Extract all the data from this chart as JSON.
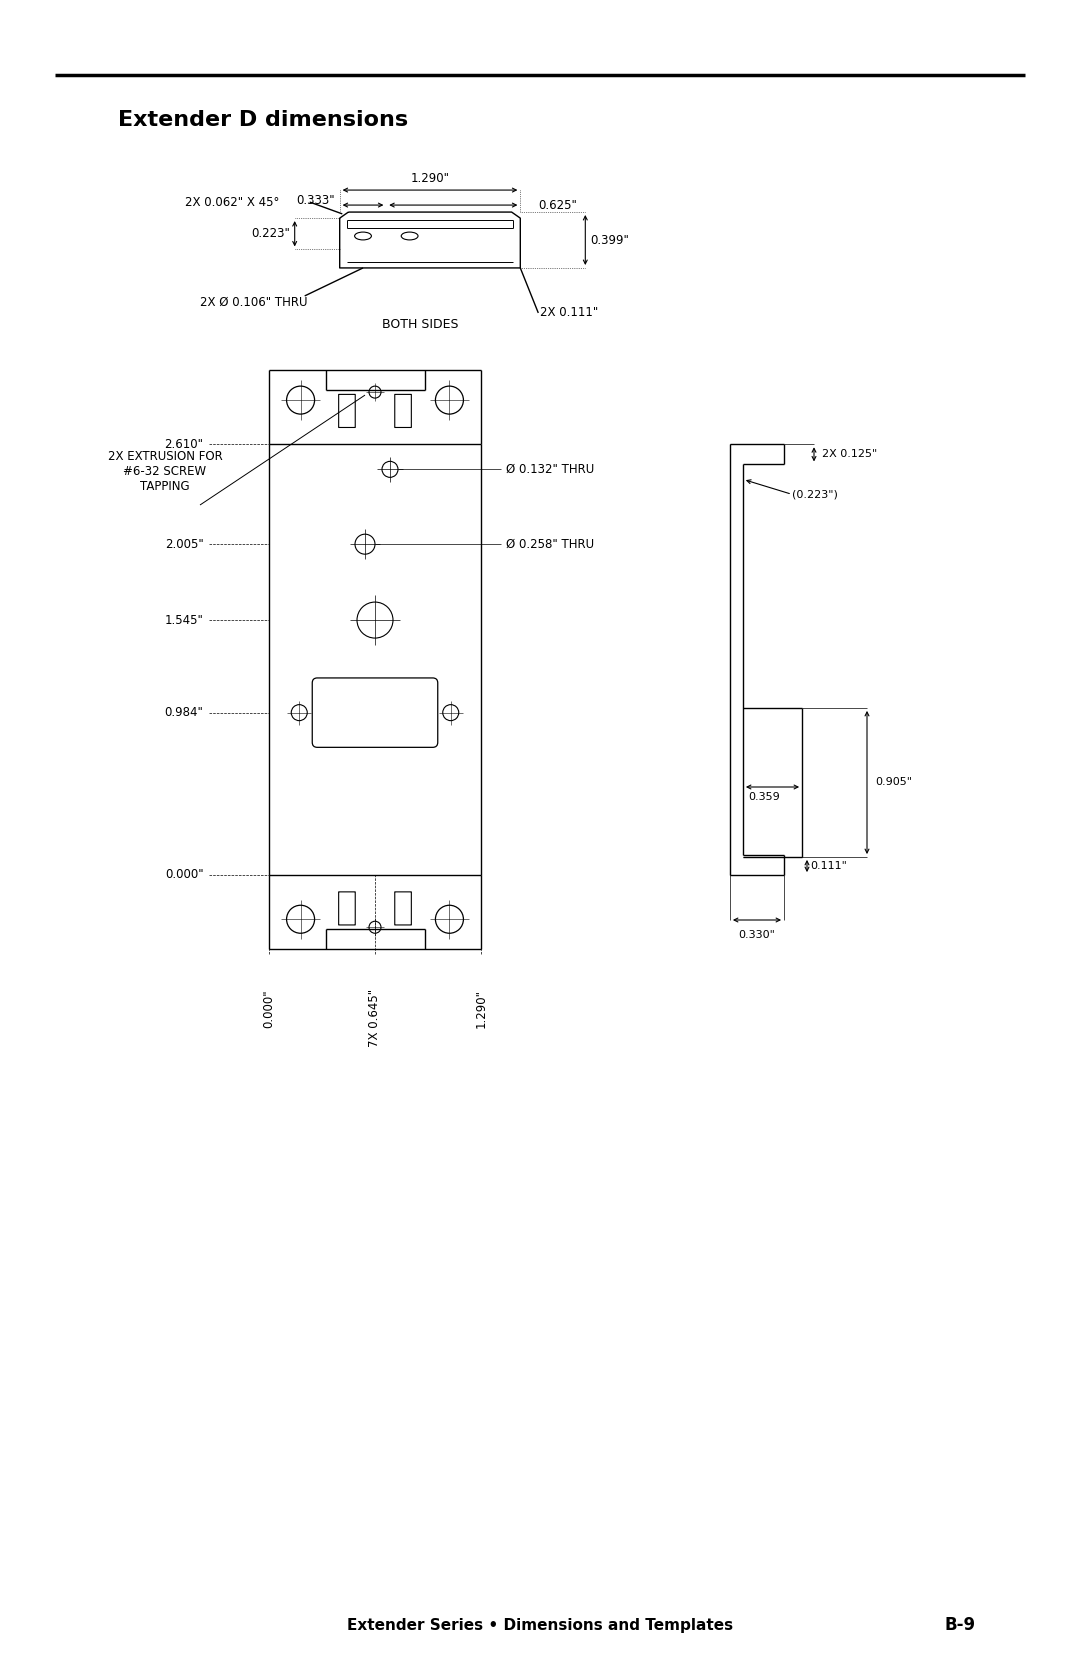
{
  "title": "Extender D dimensions",
  "footer": "Extender Series • Dimensions and Templates",
  "footer_page": "B-9",
  "bg_color": "#ffffff",
  "line_color": "#000000",
  "top_view": {
    "label_2x_chamfer": "2X 0.062\" X 45°",
    "label_width": "1.290\"",
    "label_notch": "0.333\"",
    "label_right": "0.625\"",
    "label_height": "0.223\"",
    "label_thickness": "0.399\"",
    "label_hole": "2X Ø 0.106\" THRU",
    "label_both_sides": "BOTH SIDES",
    "label_bottom": "2X 0.111\""
  },
  "front_view": {
    "label_extrusion": "2X EXTRUSION FOR\n#6-32 SCREW\nTAPPING",
    "label_y_2610": "2.610\"",
    "label_y_2005": "2.005\"",
    "label_y_1545": "1.545\"",
    "label_y_0984": "0.984\"",
    "label_y_0000": "0.000\"",
    "label_x_0000": "0.000\"",
    "label_x_0645": "7X 0.645\"",
    "label_x_1290": "1.290\"",
    "label_hole_small": "Ø 0.132\" THRU",
    "label_hole_large": "Ø 0.258\" THRU"
  },
  "side_view": {
    "label_top_flange": "2X 0.125\"",
    "label_depth": "(0.223\")",
    "label_height": "0.905\"",
    "label_step": "0.359",
    "label_bottom_w": "0.330\"",
    "label_notch_h": "0.111\""
  }
}
